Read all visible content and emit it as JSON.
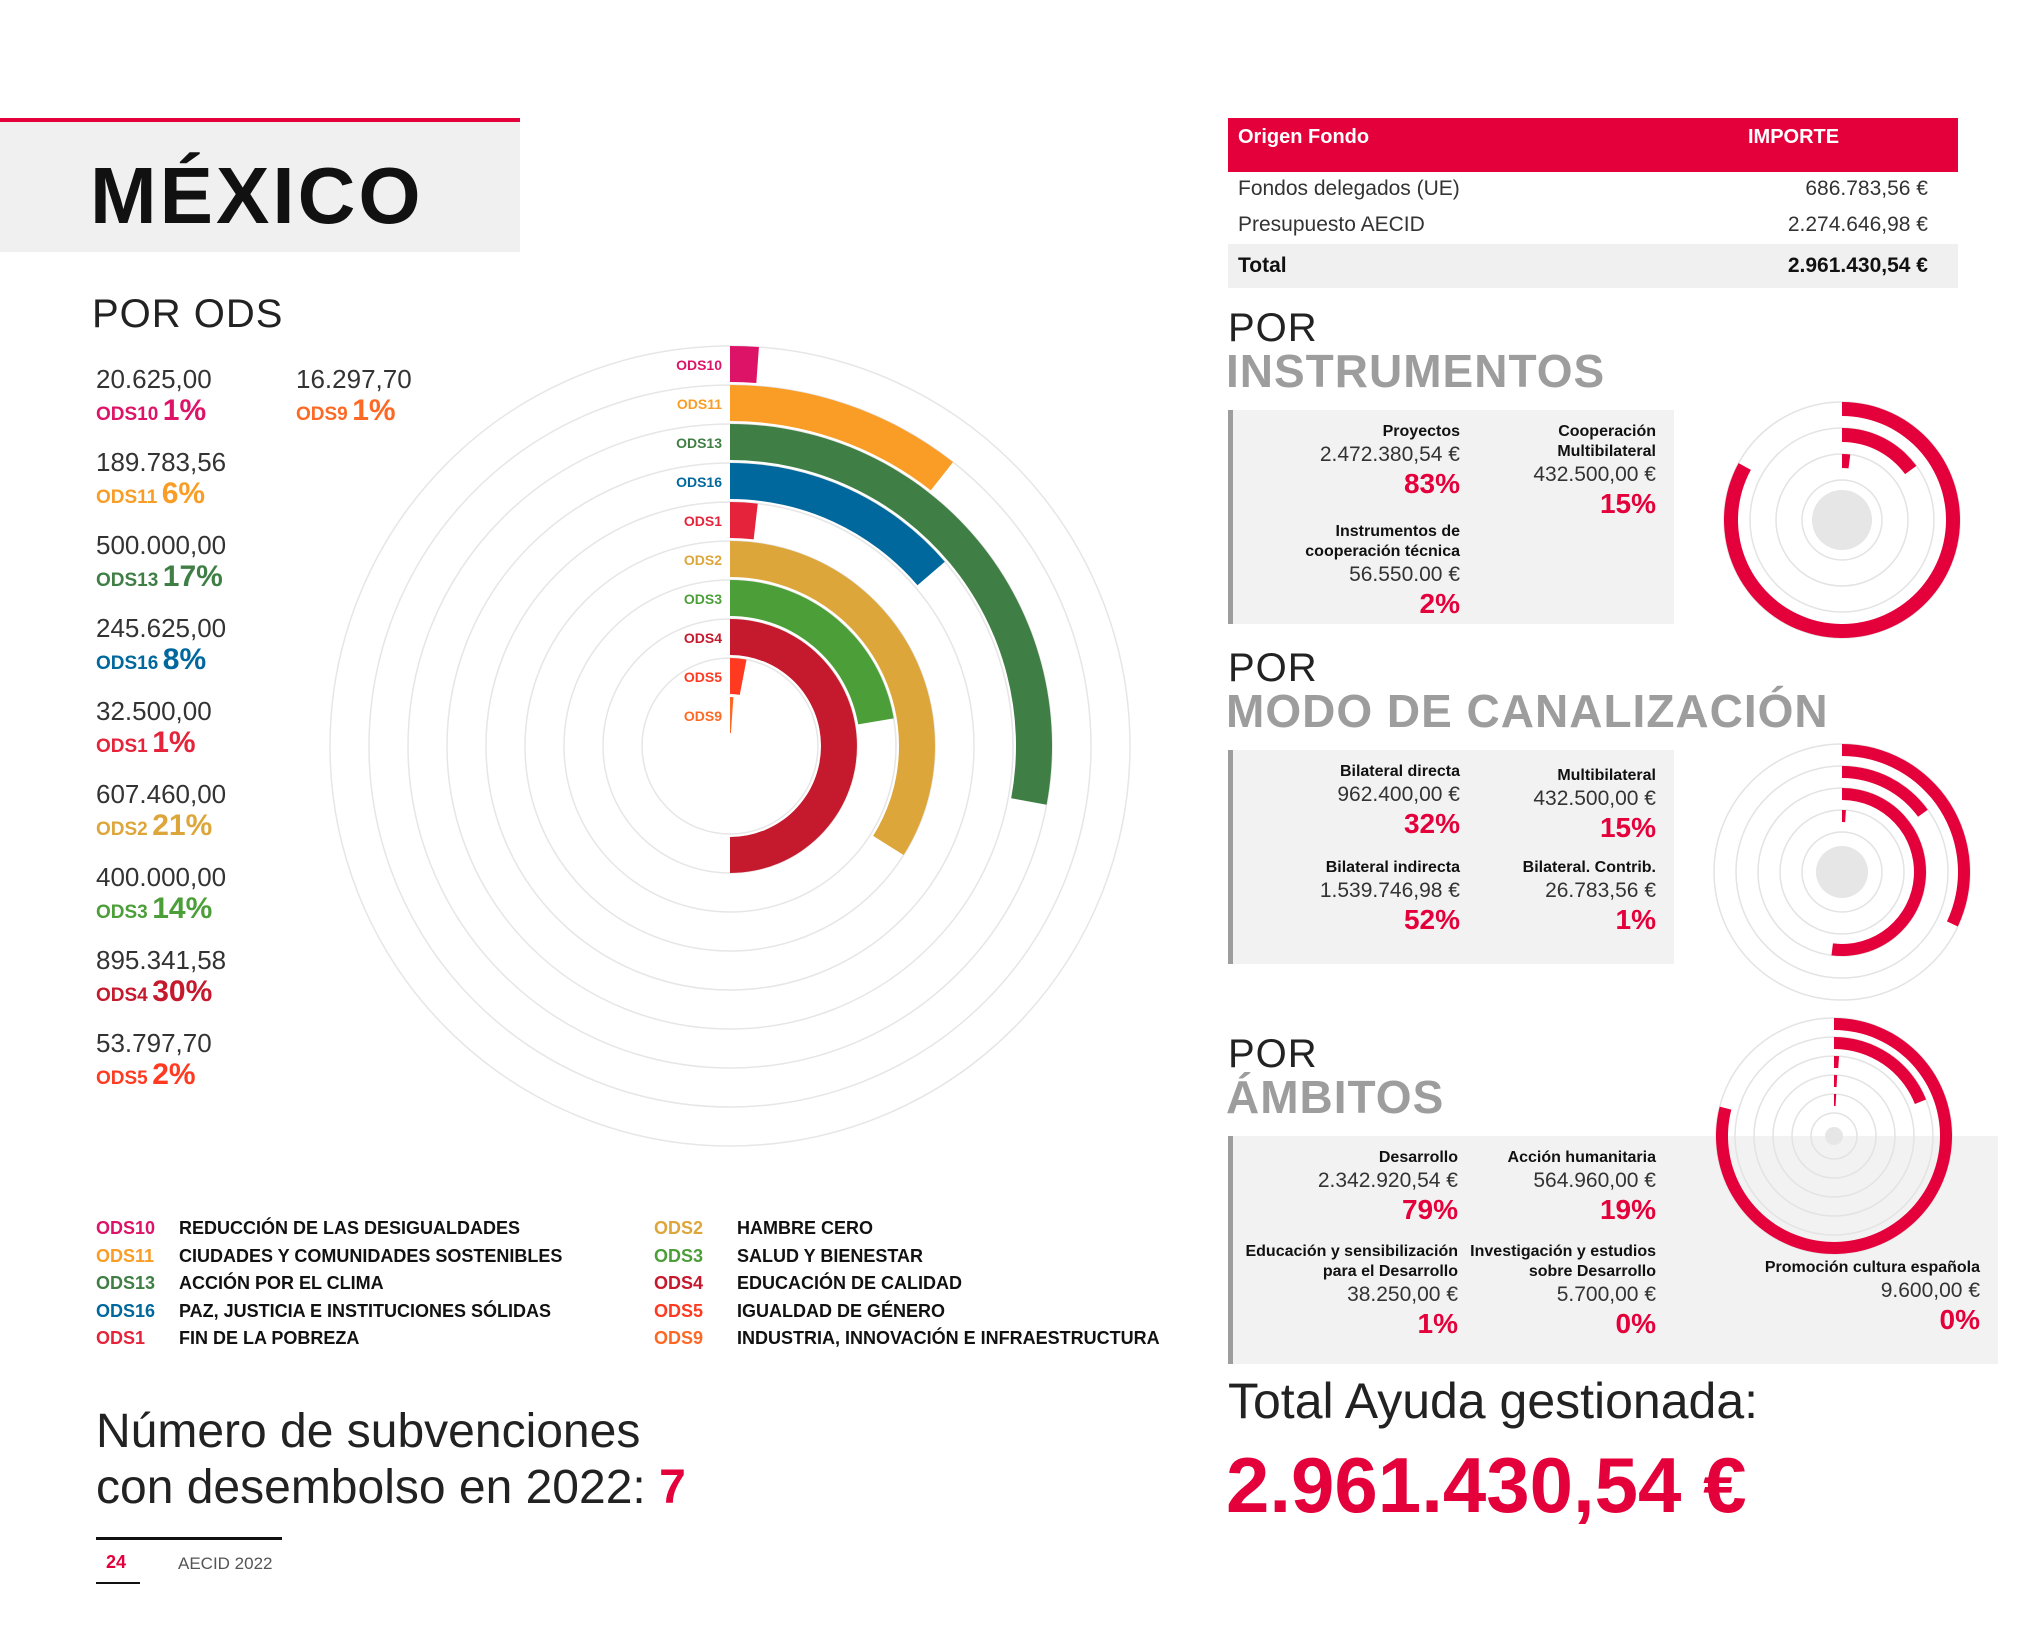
{
  "page_title": "MÉXICO",
  "colors": {
    "brand": "#e4003a",
    "ODS10": "#dd1367",
    "ODS11": "#f99d26",
    "ODS13": "#3f7e44",
    "ODS16": "#00689d",
    "ODS1": "#e5243b",
    "ODS2": "#dda63a",
    "ODS3": "#4c9f38",
    "ODS4": "#c5192d",
    "ODS5": "#ff3a21",
    "ODS9": "#fd6925"
  },
  "ods_section": {
    "heading": "POR ODS",
    "items": [
      {
        "value": "20.625,00",
        "code": "ODS10",
        "pct": "1%",
        "pct_value": 1
      },
      {
        "value": "16.297,70",
        "code": "ODS9",
        "pct": "1%",
        "pct_value": 1
      },
      {
        "value": "189.783,56",
        "code": "ODS11",
        "pct": "6%",
        "pct_value": 6
      },
      {
        "value": "500.000,00",
        "code": "ODS13",
        "pct": "17%",
        "pct_value": 17
      },
      {
        "value": "245.625,00",
        "code": "ODS16",
        "pct": "8%",
        "pct_value": 8
      },
      {
        "value": "32.500,00",
        "code": "ODS1",
        "pct": "1%",
        "pct_value": 1
      },
      {
        "value": "607.460,00",
        "code": "ODS2",
        "pct": "21%",
        "pct_value": 21
      },
      {
        "value": "400.000,00",
        "code": "ODS3",
        "pct": "14%",
        "pct_value": 14
      },
      {
        "value": "895.341,58",
        "code": "ODS4",
        "pct": "30%",
        "pct_value": 30
      },
      {
        "value": "53.797,70",
        "code": "ODS5",
        "pct": "2%",
        "pct_value": 2
      }
    ]
  },
  "chart_data": {
    "type": "bar",
    "categories": [
      "ODS10",
      "ODS11",
      "ODS13",
      "ODS16",
      "ODS1",
      "ODS2",
      "ODS3",
      "ODS4",
      "ODS5",
      "ODS9"
    ],
    "values": [
      20625.0,
      189783.56,
      500000.0,
      245625.0,
      32500.0,
      607460.0,
      400000.0,
      895341.58,
      53797.7,
      16297.7
    ]
  },
  "fund_table": {
    "col1": "Origen Fondo",
    "col2": "IMPORTE",
    "rows": [
      {
        "label": "Fondos delegados (UE)",
        "amount": "686.783,56 €"
      },
      {
        "label": "Presupuesto AECID",
        "amount": "2.274.646,98 €"
      }
    ],
    "total_label": "Total",
    "total_amount": "2.961.430,54 €"
  },
  "instrumentos": {
    "pre": "POR",
    "heading": "INSTRUMENTOS",
    "metrics": [
      {
        "label": "Proyectos",
        "value": "2.472.380,54 €",
        "pct": "83%",
        "pct_value": 83
      },
      {
        "label": "Cooperación Multibilateral",
        "value": "432.500,00 €",
        "pct": "15%",
        "pct_value": 15
      },
      {
        "label": "Instrumentos de cooperación técnica",
        "value": "56.550.00 €",
        "pct": "2%",
        "pct_value": 2
      }
    ]
  },
  "canalizacion": {
    "pre": "POR",
    "heading": "MODO DE CANALIZACIÓN",
    "metrics": [
      {
        "label": "Bilateral directa",
        "value": "962.400,00 €",
        "pct": "32%",
        "pct_value": 32
      },
      {
        "label": "Multibilateral",
        "value": "432.500,00 €",
        "pct": "15%",
        "pct_value": 15
      },
      {
        "label": "Bilateral indirecta",
        "value": "1.539.746,98 €",
        "pct": "52%",
        "pct_value": 52
      },
      {
        "label": "Bilateral. Contrib.",
        "value": "26.783,56 €",
        "pct": "1%",
        "pct_value": 1
      }
    ]
  },
  "ambitos": {
    "pre": "POR",
    "heading": "ÁMBITOS",
    "metrics": [
      {
        "label": "Desarrollo",
        "value": "2.342.920,54 €",
        "pct": "79%",
        "pct_value": 79
      },
      {
        "label": "Acción humanitaria",
        "value": "564.960,00 €",
        "pct": "19%",
        "pct_value": 19
      },
      {
        "label": "Educación y sensibilización para el Desarrollo",
        "value": "38.250,00 €",
        "pct": "1%",
        "pct_value": 1
      },
      {
        "label": "Investigación y estudios sobre Desarrollo",
        "value": "5.700,00 €",
        "pct": "0%",
        "pct_value": 0
      },
      {
        "label": "Promoción cultura española",
        "value": "9.600,00 €",
        "pct": "0%",
        "pct_value": 0
      }
    ]
  },
  "legend": [
    {
      "code": "ODS10",
      "name": "REDUCCIÓN DE LAS DESIGUALDADES"
    },
    {
      "code": "ODS11",
      "name": "CIUDADES Y COMUNIDADES SOSTENIBLES"
    },
    {
      "code": "ODS13",
      "name": "ACCIÓN POR EL CLIMA"
    },
    {
      "code": "ODS16",
      "name": "PAZ, JUSTICIA E INSTITUCIONES SÓLIDAS"
    },
    {
      "code": "ODS1",
      "name": "FIN DE LA POBREZA"
    },
    {
      "code": "ODS2",
      "name": "HAMBRE CERO"
    },
    {
      "code": "ODS3",
      "name": "SALUD Y BIENESTAR"
    },
    {
      "code": "ODS4",
      "name": "EDUCACIÓN DE CALIDAD"
    },
    {
      "code": "ODS5",
      "name": "IGUALDAD DE GÉNERO"
    },
    {
      "code": "ODS9",
      "name": "INDUSTRIA, INNOVACIÓN E INFRAESTRUCTURA"
    }
  ],
  "grants": {
    "line1": "Número de subvenciones",
    "line2": "con desembolso en 2022:",
    "count": "7"
  },
  "total_ayuda": {
    "label": "Total Ayuda gestionada:",
    "value": "2.961.430,54 €"
  },
  "footer": {
    "page": "24",
    "report": "AECID 2022"
  }
}
